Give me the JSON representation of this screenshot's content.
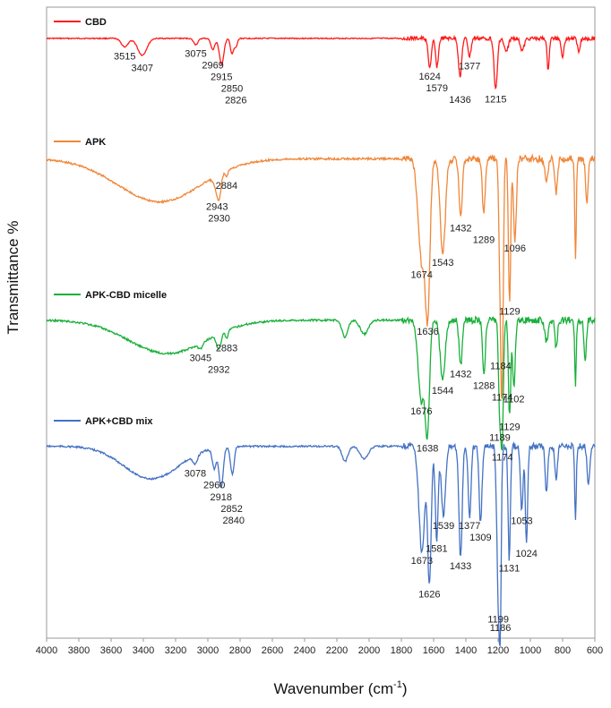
{
  "chart_data": {
    "type": "line",
    "title": "",
    "xlabel": "Wavenumber (cm",
    "xlabel_sup": "-1",
    "xlabel_tail": ")",
    "ylabel": "Transmittance %",
    "xlim": [
      4000,
      600
    ],
    "x_reversed": true,
    "xticks": [
      4000,
      3800,
      3600,
      3400,
      3200,
      3000,
      2800,
      2600,
      2400,
      2200,
      2000,
      1800,
      1600,
      1400,
      1200,
      1000,
      800,
      600
    ],
    "grid": false,
    "series": [
      {
        "name": "CBD",
        "color": "#ff1a1a",
        "baseline": 0.7,
        "peaks": [
          {
            "x": 3515,
            "depth": 0.55,
            "width": 22
          },
          {
            "x": 3407,
            "depth": 1.1,
            "width": 28
          },
          {
            "x": 3075,
            "depth": 0.4,
            "width": 14
          },
          {
            "x": 2969,
            "depth": 0.75,
            "width": 12
          },
          {
            "x": 2915,
            "depth": 1.7,
            "width": 14
          },
          {
            "x": 2850,
            "depth": 1.0,
            "width": 10
          },
          {
            "x": 2826,
            "depth": 0.55,
            "width": 9
          },
          {
            "x": 1624,
            "depth": 1.9,
            "width": 10
          },
          {
            "x": 1579,
            "depth": 1.85,
            "width": 9
          },
          {
            "x": 1436,
            "depth": 2.5,
            "width": 10
          },
          {
            "x": 1377,
            "depth": 1.2,
            "width": 9
          },
          {
            "x": 1215,
            "depth": 3.4,
            "width": 10
          },
          {
            "x": 1150,
            "depth": 0.9,
            "width": 12
          },
          {
            "x": 1050,
            "depth": 0.8,
            "width": 12
          },
          {
            "x": 890,
            "depth": 2.0,
            "width": 7
          },
          {
            "x": 800,
            "depth": 1.2,
            "width": 8
          },
          {
            "x": 700,
            "depth": 0.8,
            "width": 8
          }
        ],
        "labels": [
          {
            "x": 3515,
            "text": "3515"
          },
          {
            "x": 3407,
            "text": "3407"
          },
          {
            "x": 3075,
            "text": "3075"
          },
          {
            "x": 2969,
            "text": "2969"
          },
          {
            "x": 2915,
            "text": "2915"
          },
          {
            "x": 2850,
            "text": "2850"
          },
          {
            "x": 2826,
            "text": "2826"
          },
          {
            "x": 1624,
            "text": "1624"
          },
          {
            "x": 1579,
            "text": "1579"
          },
          {
            "x": 1436,
            "text": "1436"
          },
          {
            "x": 1377,
            "text": "1377"
          },
          {
            "x": 1215,
            "text": "1215"
          }
        ]
      },
      {
        "name": "APK",
        "color": "#f0873a",
        "baseline": 0.5,
        "peaks": [
          {
            "x": 3300,
            "depth": 1.5,
            "width": 260
          },
          {
            "x": 2943,
            "depth": 0.45,
            "width": 18
          },
          {
            "x": 2930,
            "depth": 0.55,
            "width": 12
          },
          {
            "x": 2884,
            "depth": 0.2,
            "width": 8
          },
          {
            "x": 1674,
            "depth": 3.6,
            "width": 22
          },
          {
            "x": 1636,
            "depth": 4.9,
            "width": 14
          },
          {
            "x": 1543,
            "depth": 3.3,
            "width": 16
          },
          {
            "x": 1432,
            "depth": 2.1,
            "width": 10
          },
          {
            "x": 1289,
            "depth": 1.9,
            "width": 9
          },
          {
            "x": 1184,
            "depth": 5.0,
            "width": 9
          },
          {
            "x": 1174,
            "depth": 5.3,
            "width": 7
          },
          {
            "x": 1129,
            "depth": 5.0,
            "width": 7
          },
          {
            "x": 1096,
            "depth": 2.8,
            "width": 9
          },
          {
            "x": 900,
            "depth": 0.8,
            "width": 10
          },
          {
            "x": 840,
            "depth": 1.2,
            "width": 8
          },
          {
            "x": 720,
            "depth": 3.5,
            "width": 5
          },
          {
            "x": 650,
            "depth": 1.5,
            "width": 8
          }
        ],
        "labels": [
          {
            "x": 2943,
            "text": "2943"
          },
          {
            "x": 2930,
            "text": "2930"
          },
          {
            "x": 2884,
            "text": "2884"
          },
          {
            "x": 1674,
            "text": "1674"
          },
          {
            "x": 1636,
            "text": "1636"
          },
          {
            "x": 1543,
            "text": "1543"
          },
          {
            "x": 1432,
            "text": "1432"
          },
          {
            "x": 1289,
            "text": "1289"
          },
          {
            "x": 1184,
            "text": "1184"
          },
          {
            "x": 1174,
            "text": "1174"
          },
          {
            "x": 1129,
            "text": "1129"
          },
          {
            "x": 1096,
            "text": "1096"
          }
        ]
      },
      {
        "name": "APK-CBD micelle",
        "color": "#19b03a",
        "baseline": 0.6,
        "peaks": [
          {
            "x": 3250,
            "depth": 1.2,
            "width": 240
          },
          {
            "x": 3045,
            "depth": 0.2,
            "width": 14
          },
          {
            "x": 2932,
            "depth": 0.55,
            "width": 14
          },
          {
            "x": 2883,
            "depth": 0.3,
            "width": 8
          },
          {
            "x": 2150,
            "depth": 0.6,
            "width": 18
          },
          {
            "x": 2030,
            "depth": 0.5,
            "width": 25
          },
          {
            "x": 1676,
            "depth": 2.9,
            "width": 20
          },
          {
            "x": 1638,
            "depth": 3.8,
            "width": 13
          },
          {
            "x": 1544,
            "depth": 2.2,
            "width": 15
          },
          {
            "x": 1432,
            "depth": 1.6,
            "width": 10
          },
          {
            "x": 1288,
            "depth": 1.9,
            "width": 9
          },
          {
            "x": 1189,
            "depth": 3.5,
            "width": 8
          },
          {
            "x": 1174,
            "depth": 4.0,
            "width": 7
          },
          {
            "x": 1129,
            "depth": 3.5,
            "width": 7
          },
          {
            "x": 1102,
            "depth": 2.5,
            "width": 8
          },
          {
            "x": 900,
            "depth": 0.8,
            "width": 10
          },
          {
            "x": 840,
            "depth": 1.0,
            "width": 8
          },
          {
            "x": 720,
            "depth": 2.3,
            "width": 5
          },
          {
            "x": 660,
            "depth": 1.5,
            "width": 7
          }
        ],
        "labels": [
          {
            "x": 3045,
            "text": "3045"
          },
          {
            "x": 2932,
            "text": "2932"
          },
          {
            "x": 2883,
            "text": "2883"
          },
          {
            "x": 1676,
            "text": "1676"
          },
          {
            "x": 1638,
            "text": "1638"
          },
          {
            "x": 1544,
            "text": "1544"
          },
          {
            "x": 1432,
            "text": "1432"
          },
          {
            "x": 1288,
            "text": "1288"
          },
          {
            "x": 1189,
            "text": "1189"
          },
          {
            "x": 1174,
            "text": "1174"
          },
          {
            "x": 1129,
            "text": "1129"
          },
          {
            "x": 1102,
            "text": "1102"
          }
        ]
      },
      {
        "name": "APK+CBD mix",
        "color": "#4472c4",
        "baseline": 0.6,
        "peaks": [
          {
            "x": 3350,
            "depth": 1.3,
            "width": 170
          },
          {
            "x": 3078,
            "depth": 0.35,
            "width": 14
          },
          {
            "x": 2960,
            "depth": 0.8,
            "width": 12
          },
          {
            "x": 2918,
            "depth": 1.6,
            "width": 13
          },
          {
            "x": 2852,
            "depth": 0.9,
            "width": 10
          },
          {
            "x": 2840,
            "depth": 0.4,
            "width": 8
          },
          {
            "x": 2150,
            "depth": 0.6,
            "width": 18
          },
          {
            "x": 2030,
            "depth": 0.5,
            "width": 25
          },
          {
            "x": 1673,
            "depth": 4.2,
            "width": 18
          },
          {
            "x": 1626,
            "depth": 5.4,
            "width": 11
          },
          {
            "x": 1581,
            "depth": 3.7,
            "width": 9
          },
          {
            "x": 1539,
            "depth": 2.8,
            "width": 13
          },
          {
            "x": 1433,
            "depth": 4.4,
            "width": 10
          },
          {
            "x": 1377,
            "depth": 2.8,
            "width": 9
          },
          {
            "x": 1309,
            "depth": 3.0,
            "width": 9
          },
          {
            "x": 1199,
            "depth": 6.0,
            "width": 9
          },
          {
            "x": 1186,
            "depth": 5.5,
            "width": 6
          },
          {
            "x": 1131,
            "depth": 4.5,
            "width": 7
          },
          {
            "x": 1053,
            "depth": 2.6,
            "width": 8
          },
          {
            "x": 1024,
            "depth": 3.9,
            "width": 7
          },
          {
            "x": 900,
            "depth": 1.8,
            "width": 8
          },
          {
            "x": 840,
            "depth": 1.3,
            "width": 8
          },
          {
            "x": 720,
            "depth": 3.0,
            "width": 5
          },
          {
            "x": 640,
            "depth": 1.5,
            "width": 8
          }
        ],
        "labels": [
          {
            "x": 3078,
            "text": "3078"
          },
          {
            "x": 2960,
            "text": "2960"
          },
          {
            "x": 2918,
            "text": "2918"
          },
          {
            "x": 2852,
            "text": "2852"
          },
          {
            "x": 2840,
            "text": "2840"
          },
          {
            "x": 1673,
            "text": "1673"
          },
          {
            "x": 1626,
            "text": "1626"
          },
          {
            "x": 1581,
            "text": "1581"
          },
          {
            "x": 1539,
            "text": "1539"
          },
          {
            "x": 1433,
            "text": "1433"
          },
          {
            "x": 1377,
            "text": "1377"
          },
          {
            "x": 1309,
            "text": "1309"
          },
          {
            "x": 1199,
            "text": "1199"
          },
          {
            "x": 1186,
            "text": "1186"
          },
          {
            "x": 1131,
            "text": "1131"
          },
          {
            "x": 1053,
            "text": "1053"
          },
          {
            "x": 1024,
            "text": "1024"
          }
        ]
      }
    ]
  }
}
